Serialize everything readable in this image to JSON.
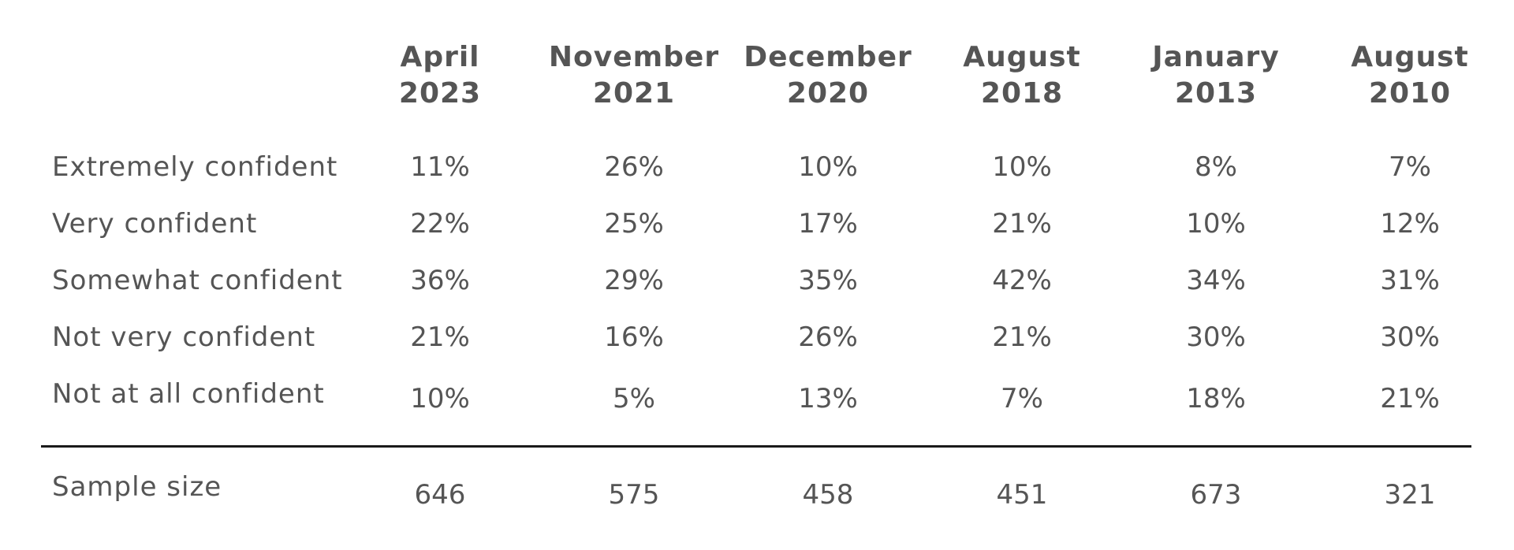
{
  "chart_data": {
    "type": "table",
    "columns": [
      {
        "line1": "April",
        "line2": "2023"
      },
      {
        "line1": "November",
        "line2": "2021"
      },
      {
        "line1": "December",
        "line2": "2020"
      },
      {
        "line1": "August",
        "line2": "2018"
      },
      {
        "line1": "January",
        "line2": "2013"
      },
      {
        "line1": "August",
        "line2": "2010"
      }
    ],
    "rows": [
      {
        "label": "Extremely confident",
        "values": [
          "11%",
          "26%",
          "10%",
          "10%",
          "8%",
          "7%"
        ]
      },
      {
        "label": "Very confident",
        "values": [
          "22%",
          "25%",
          "17%",
          "21%",
          "10%",
          "12%"
        ]
      },
      {
        "label": "Somewhat confident",
        "values": [
          "36%",
          "29%",
          "35%",
          "42%",
          "34%",
          "31%"
        ]
      },
      {
        "label": "Not very confident",
        "values": [
          "21%",
          "16%",
          "26%",
          "21%",
          "30%",
          "30%"
        ]
      },
      {
        "label": "Not at all confident",
        "values": [
          "10%",
          "5%",
          "13%",
          "7%",
          "18%",
          "21%"
        ]
      }
    ],
    "sample_size": {
      "label": "Sample size",
      "values": [
        "646",
        "575",
        "458",
        "451",
        "673",
        "321"
      ]
    }
  }
}
